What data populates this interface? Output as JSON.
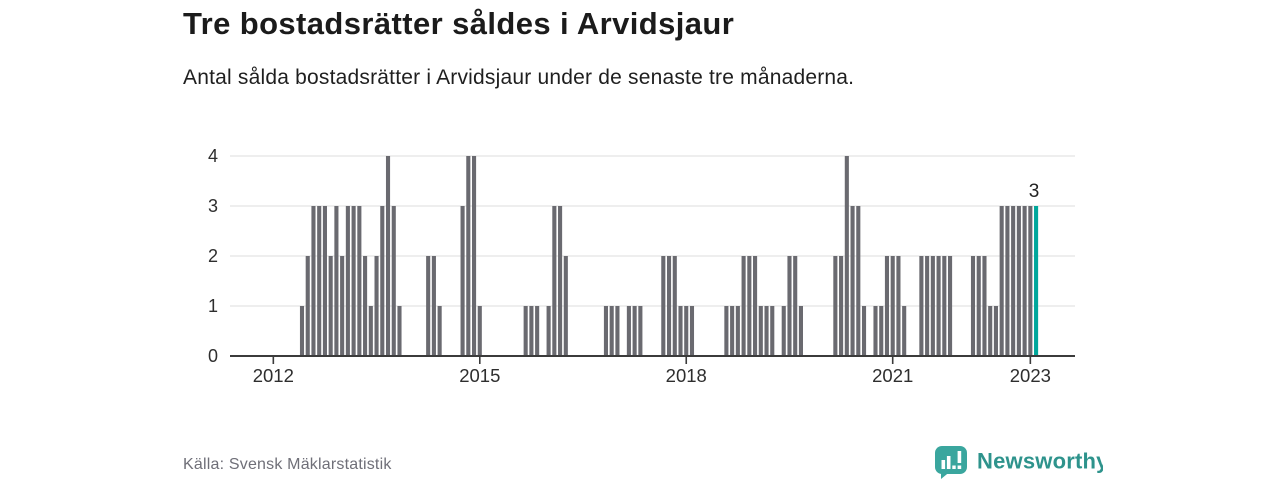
{
  "header": {
    "title": "Tre bostadsrätter såldes i Arvidsjaur",
    "subtitle": "Antal sålda bostadsrätter i Arvidsjaur under de senaste tre månaderna."
  },
  "footer": {
    "source": "Källa: Svensk Mäklarstatistik",
    "logo_text": "Newsworthy"
  },
  "colors": {
    "bar": "#6a6a70",
    "highlight": "#00a79b",
    "gridline": "#e4e4e4",
    "axis": "#3b3b3b",
    "tick_label": "#2e2e2e",
    "annotation": "#222222",
    "logo": "#3aa69e",
    "logo_text": "#2e938c"
  },
  "chart_data": {
    "type": "bar",
    "title": "Tre bostadsrätter såldes i Arvidsjaur",
    "ylabel": "",
    "xlabel": "",
    "ylim": [
      0,
      4
    ],
    "grid": true,
    "start_month": "2012-06",
    "end_month": "2023-02",
    "values": [
      1,
      2,
      3,
      3,
      3,
      2,
      3,
      2,
      3,
      3,
      3,
      2,
      1,
      2,
      3,
      4,
      3,
      1,
      0,
      0,
      0,
      0,
      2,
      2,
      1,
      0,
      0,
      0,
      3,
      4,
      4,
      1,
      0,
      0,
      0,
      0,
      0,
      0,
      0,
      1,
      1,
      1,
      0,
      1,
      3,
      3,
      2,
      0,
      0,
      0,
      0,
      0,
      0,
      1,
      1,
      1,
      0,
      1,
      1,
      1,
      0,
      0,
      0,
      2,
      2,
      2,
      1,
      1,
      1,
      0,
      0,
      0,
      0,
      0,
      1,
      1,
      1,
      2,
      2,
      2,
      1,
      1,
      1,
      0,
      1,
      2,
      2,
      1,
      0,
      0,
      0,
      0,
      0,
      2,
      2,
      4,
      3,
      3,
      1,
      0,
      1,
      1,
      2,
      2,
      2,
      1,
      0,
      0,
      2,
      2,
      2,
      2,
      2,
      2,
      0,
      0,
      0,
      2,
      2,
      2,
      1,
      1,
      3,
      3,
      3,
      3,
      3,
      3,
      3
    ],
    "highlight_last": true,
    "last_value_label": "3",
    "y_ticks": [
      0,
      1,
      2,
      3,
      4
    ],
    "x_ticks": [
      {
        "label": "2012",
        "month_offset": -5
      },
      {
        "label": "2015",
        "month_offset": 31
      },
      {
        "label": "2018",
        "month_offset": 67
      },
      {
        "label": "2021",
        "month_offset": 103
      },
      {
        "label": "2023",
        "month_offset": 127
      }
    ],
    "legend": null
  }
}
